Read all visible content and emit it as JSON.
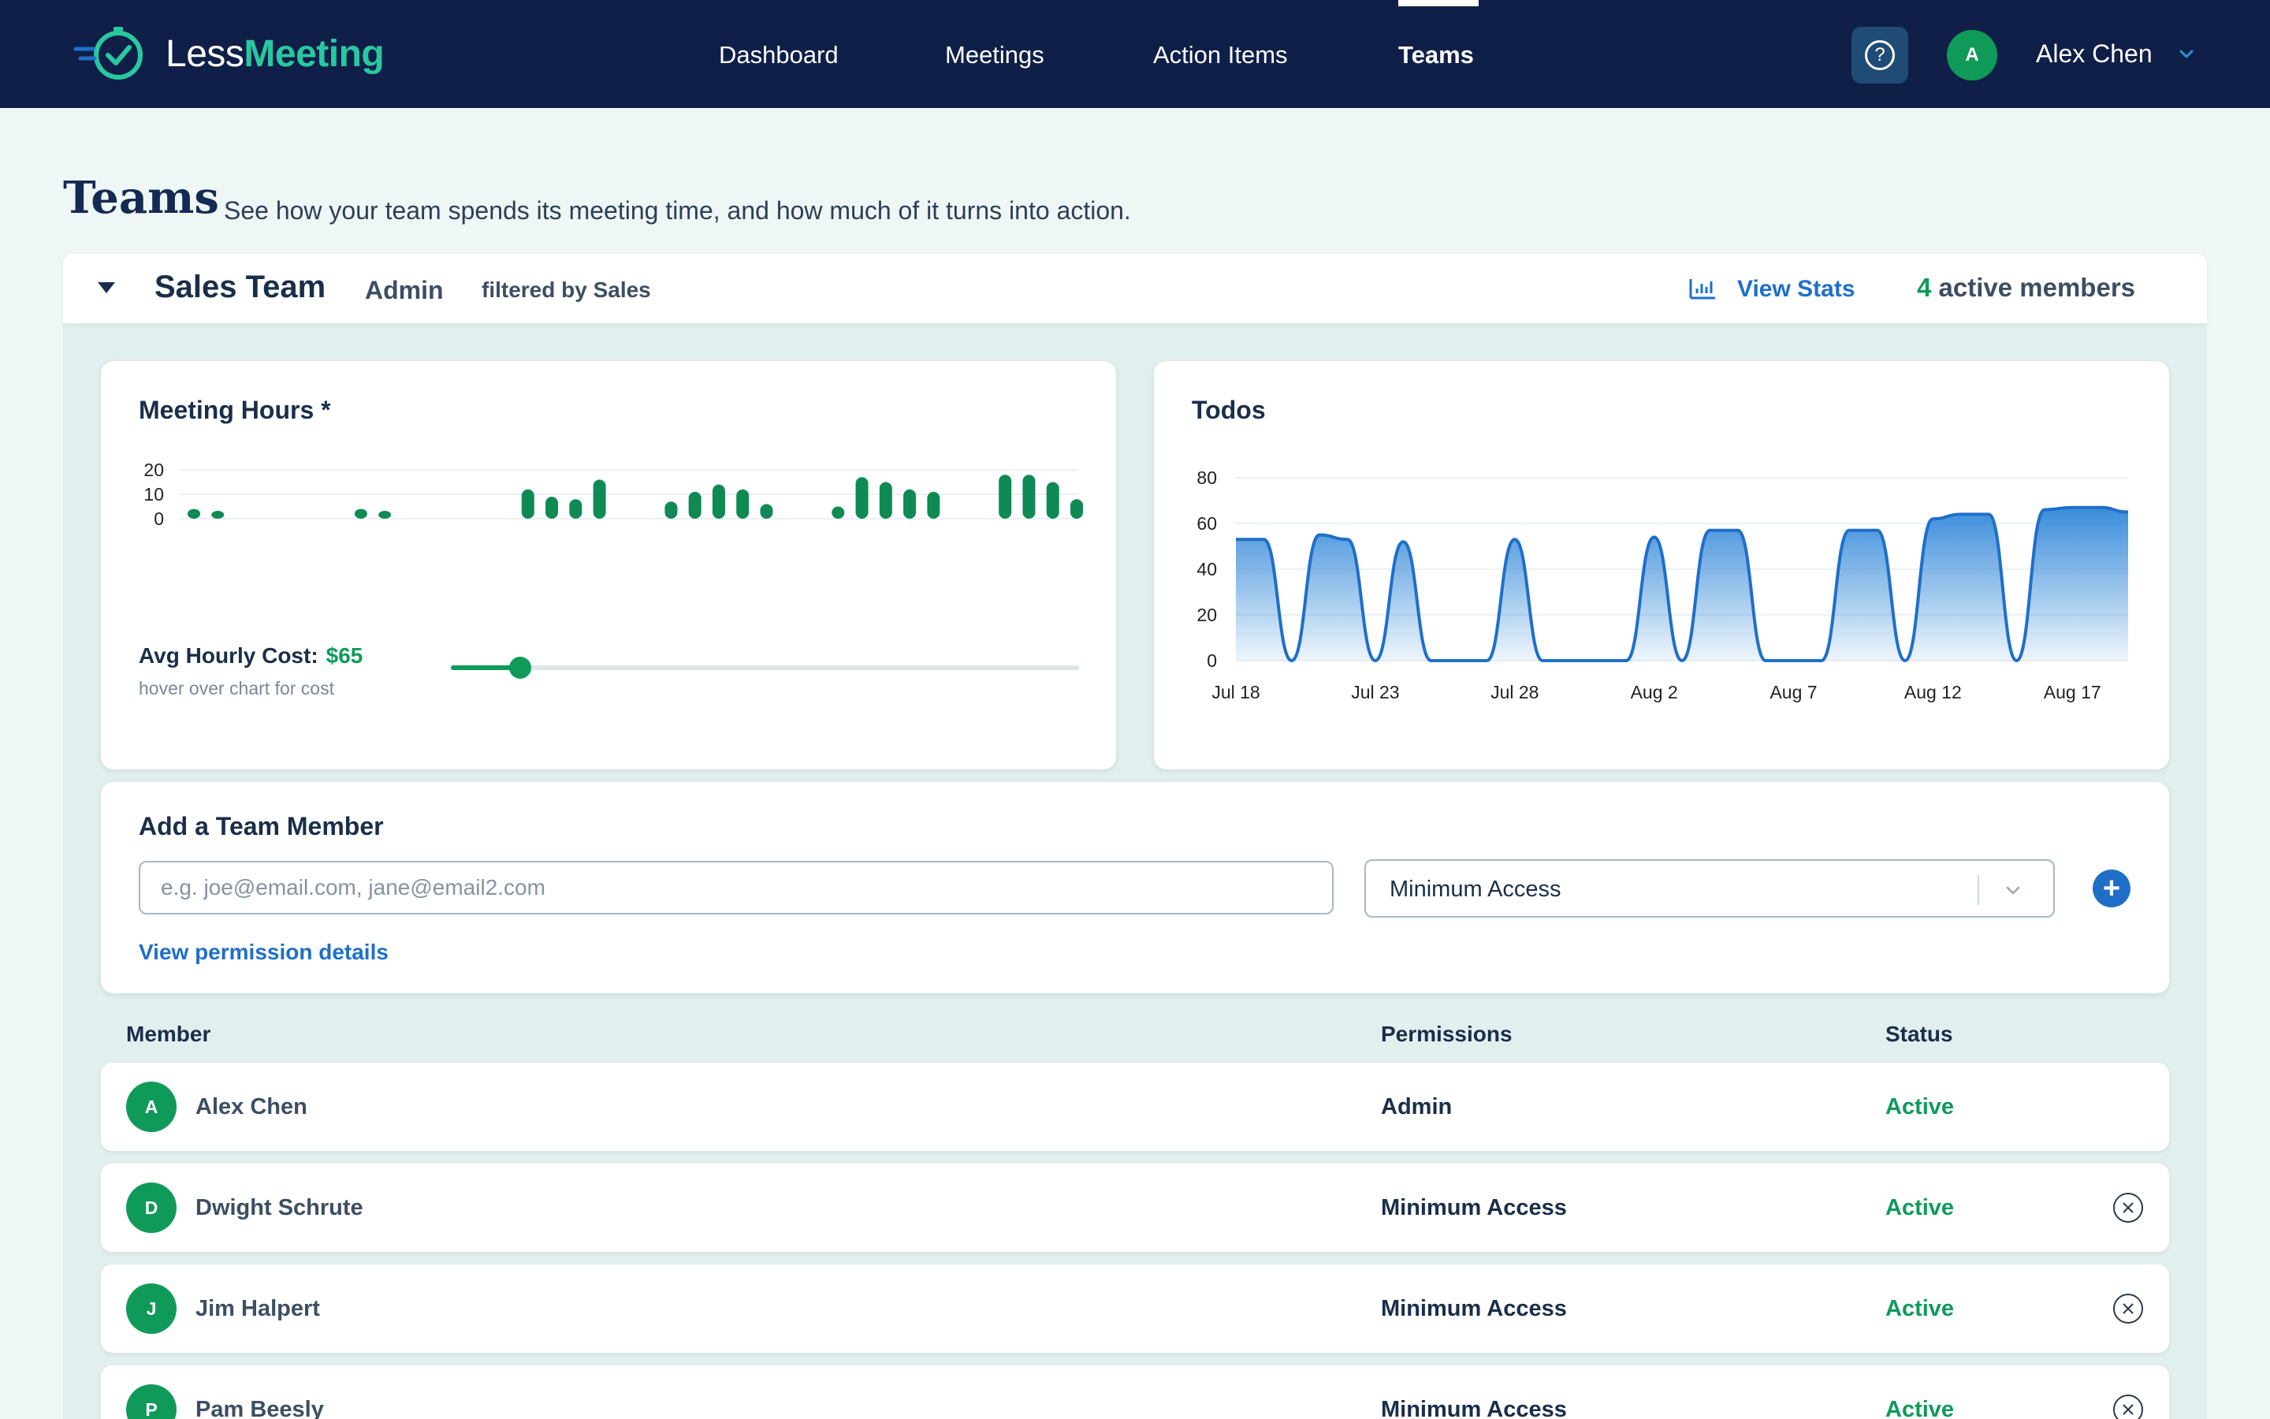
{
  "brand": {
    "less": "Less",
    "meeting": "Meeting"
  },
  "nav": {
    "links": [
      "Dashboard",
      "Meetings",
      "Action Items",
      "Teams"
    ],
    "active": "Teams",
    "help": "?",
    "user_initial": "A",
    "user_name": "Alex Chen"
  },
  "page": {
    "title": "Teams",
    "subtitle": "See how your team spends its meeting time, and how much of it turns into action."
  },
  "team": {
    "name": "Sales Team",
    "role": "Admin",
    "filter": "filtered by Sales",
    "view_stats": "View Stats",
    "active_count": "4",
    "active_label": "active members"
  },
  "meeting_hours": {
    "title": "Meeting Hours *",
    "avg_cost_label": "Avg Hourly Cost:",
    "avg_cost_value": "$65",
    "hint": "hover over chart for cost",
    "slider_value_fraction": 0.11
  },
  "todos": {
    "title": "Todos"
  },
  "chart_data": [
    {
      "type": "bar",
      "title": "Meeting Hours *",
      "ylim": [
        0,
        20
      ],
      "y_ticks": [
        "20",
        "10",
        "0"
      ],
      "values": [
        4,
        1.5,
        null,
        null,
        null,
        null,
        null,
        4,
        1.5,
        null,
        null,
        null,
        null,
        null,
        12,
        9,
        8,
        16,
        null,
        null,
        7,
        11,
        14,
        12,
        6,
        null,
        null,
        5,
        17,
        15,
        12,
        11,
        null,
        null,
        18,
        18,
        15,
        8
      ],
      "color": "#0f8a55"
    },
    {
      "type": "area",
      "title": "Todos",
      "ylim": [
        0,
        80
      ],
      "y_ticks": [
        "80",
        "60",
        "40",
        "20",
        "0"
      ],
      "x_ticks": [
        "Jul 18",
        "Jul 23",
        "Jul 28",
        "Aug 2",
        "Aug 7",
        "Aug 12",
        "Aug 17"
      ],
      "points": [
        [
          "Jul 18",
          53
        ],
        [
          "Jul 19",
          53
        ],
        [
          "Jul 20",
          0
        ],
        [
          "Jul 21",
          55
        ],
        [
          "Jul 22",
          53
        ],
        [
          "Jul 23",
          0
        ],
        [
          "Jul 24",
          52
        ],
        [
          "Jul 25",
          0
        ],
        [
          "Jul 26",
          0
        ],
        [
          "Jul 27",
          0
        ],
        [
          "Jul 28",
          53
        ],
        [
          "Jul 29",
          0
        ],
        [
          "Jul 30",
          0
        ],
        [
          "Jul 31",
          0
        ],
        [
          "Aug 1",
          0
        ],
        [
          "Aug 2",
          54
        ],
        [
          "Aug 3",
          0
        ],
        [
          "Aug 4",
          57
        ],
        [
          "Aug 5",
          57
        ],
        [
          "Aug 6",
          0
        ],
        [
          "Aug 7",
          0
        ],
        [
          "Aug 8",
          0
        ],
        [
          "Aug 9",
          57
        ],
        [
          "Aug 10",
          57
        ],
        [
          "Aug 11",
          0
        ],
        [
          "Aug 12",
          62
        ],
        [
          "Aug 13",
          64
        ],
        [
          "Aug 14",
          64
        ],
        [
          "Aug 15",
          0
        ],
        [
          "Aug 16",
          66
        ],
        [
          "Aug 17",
          67
        ],
        [
          "Aug 18",
          67
        ],
        [
          "Aug 19",
          65
        ]
      ],
      "color": "#1f6fc9"
    }
  ],
  "add_member": {
    "title": "Add a Team Member",
    "email_placeholder": "e.g. joe@email.com, jane@email2.com",
    "access_value": "Minimum Access",
    "add_button": "+",
    "permission_link": "View permission details"
  },
  "table": {
    "headers": [
      "Member",
      "Permissions",
      "Status"
    ],
    "rows": [
      {
        "initial": "A",
        "name": "Alex Chen",
        "permission": "Admin",
        "status": "Active",
        "removable": false
      },
      {
        "initial": "D",
        "name": "Dwight Schrute",
        "permission": "Minimum Access",
        "status": "Active",
        "removable": true
      },
      {
        "initial": "J",
        "name": "Jim Halpert",
        "permission": "Minimum Access",
        "status": "Active",
        "removable": true
      },
      {
        "initial": "P",
        "name": "Pam Beesly",
        "permission": "Minimum Access",
        "status": "Active",
        "removable": true
      }
    ]
  }
}
